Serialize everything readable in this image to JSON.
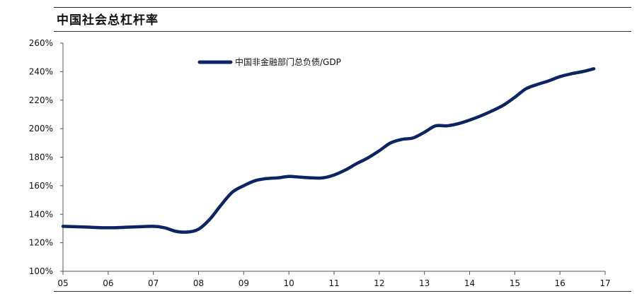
{
  "title": "中国社会总杠杆率",
  "chart_data": {
    "type": "line",
    "title": "中国社会总杠杆率",
    "xlabel": "",
    "ylabel": "",
    "x_ticks": [
      "05",
      "06",
      "07",
      "08",
      "09",
      "10",
      "11",
      "12",
      "13",
      "14",
      "15",
      "16",
      "17"
    ],
    "y_ticks": [
      "100%",
      "120%",
      "140%",
      "160%",
      "180%",
      "200%",
      "220%",
      "240%",
      "260%"
    ],
    "ylim": [
      100,
      260
    ],
    "xlim": [
      2005,
      2017
    ],
    "grid": false,
    "legend_position": "top",
    "series": [
      {
        "name": "中国非金融部门总负债/GDP",
        "color": "#0b2563",
        "x": [
          2005.0,
          2005.5,
          2006.0,
          2006.5,
          2007.0,
          2007.25,
          2007.5,
          2007.75,
          2008.0,
          2008.25,
          2008.5,
          2008.75,
          2009.0,
          2009.25,
          2009.5,
          2009.75,
          2010.0,
          2010.25,
          2010.5,
          2010.75,
          2011.0,
          2011.25,
          2011.5,
          2011.75,
          2012.0,
          2012.25,
          2012.5,
          2012.75,
          2013.0,
          2013.25,
          2013.5,
          2013.75,
          2014.0,
          2014.25,
          2014.5,
          2014.75,
          2015.0,
          2015.25,
          2015.5,
          2015.75,
          2016.0,
          2016.25,
          2016.5,
          2016.75
        ],
        "values": [
          131.5,
          131.0,
          130.5,
          131.0,
          131.5,
          130.5,
          128.0,
          127.5,
          129.5,
          136.5,
          146.5,
          155.5,
          160.0,
          163.5,
          165.0,
          165.5,
          166.5,
          166.0,
          165.5,
          165.5,
          167.5,
          171.0,
          175.5,
          179.5,
          184.5,
          190.0,
          192.5,
          193.5,
          197.5,
          202.0,
          202.0,
          203.5,
          206.0,
          209.0,
          212.5,
          216.5,
          222.0,
          228.0,
          231.0,
          233.5,
          236.5,
          238.5,
          240.0,
          242.0
        ]
      }
    ]
  }
}
